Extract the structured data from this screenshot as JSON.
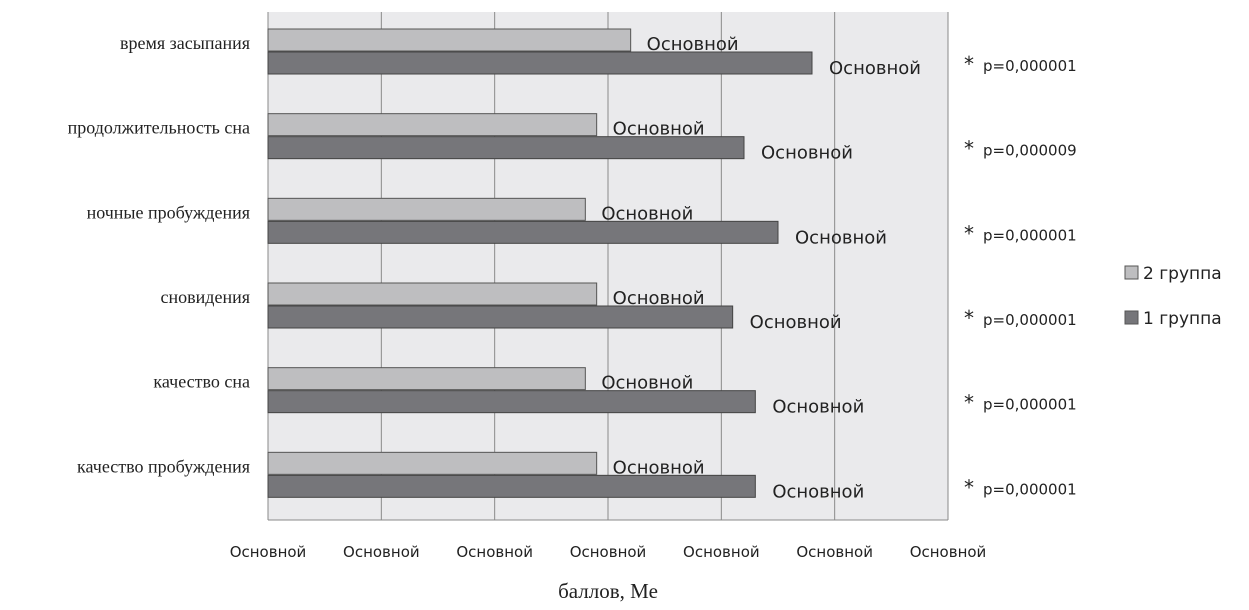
{
  "chart_data": {
    "type": "bar",
    "orientation": "horizontal",
    "categories": [
      "время засыпания",
      "продолжительность сна",
      "ночные пробуждения",
      "сновидения",
      "качество сна",
      "качество пробуждения"
    ],
    "series": [
      {
        "name": "2 группа",
        "color": "#bebec0",
        "values": [
          3.2,
          2.9,
          2.8,
          2.9,
          2.8,
          2.9
        ],
        "labels": [
          "Основной",
          "Основной",
          "Основной",
          "Основной",
          "Основной",
          "Основной"
        ]
      },
      {
        "name": "1 группа",
        "color": "#76767a",
        "values": [
          4.8,
          4.2,
          4.5,
          4.1,
          4.3,
          4.3
        ],
        "labels": [
          "Основной",
          "Основной",
          "Основной",
          "Основной",
          "Основной",
          "Основной"
        ]
      }
    ],
    "xlim": [
      0,
      6
    ],
    "x_tick_values": [
      0,
      1,
      2,
      3,
      4,
      5,
      6
    ],
    "x_tick_labels": [
      "Основной",
      "Основной",
      "Основной",
      "Основной",
      "Основной",
      "Основной",
      "Основной"
    ],
    "xlabel": "баллов, Ме",
    "grid": true,
    "legend_position": "right",
    "significance_marker": "*",
    "p_values": [
      "p=0,000001",
      "p=0,000009",
      "p=0,000001",
      "p=0,000001",
      "p=0,000001",
      "p=0,000001"
    ]
  }
}
